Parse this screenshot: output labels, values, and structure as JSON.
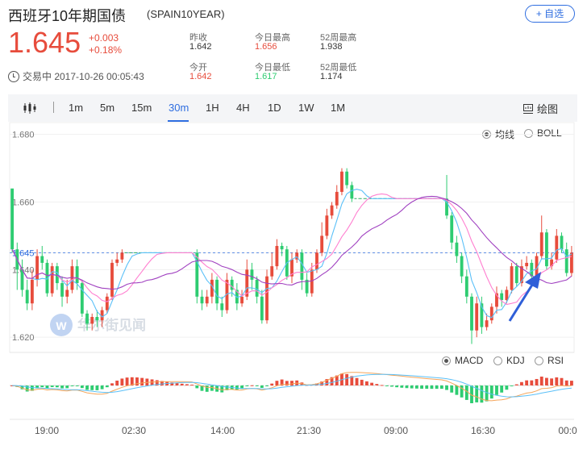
{
  "header": {
    "name": "西班牙10年期国债",
    "code": "(SPAIN10YEAR)",
    "watch_label": "+ 自选"
  },
  "quote": {
    "price": "1.645",
    "change": "+0.003",
    "change_pct": "+0.18%",
    "status": "交易中 2017-10-26 00:05:43",
    "stats": [
      {
        "label": "昨收",
        "value": "1.642",
        "color": "#333333"
      },
      {
        "label": "今日最高",
        "value": "1.656",
        "color": "#e74c3c"
      },
      {
        "label": "52周最高",
        "value": "1.938",
        "color": "#333333"
      },
      {
        "label": "今开",
        "value": "1.642",
        "color": "#e74c3c"
      },
      {
        "label": "今日最低",
        "value": "1.617",
        "color": "#2ecc71"
      },
      {
        "label": "52周最低",
        "value": "1.174",
        "color": "#333333"
      }
    ]
  },
  "toolbar": {
    "tabs": [
      "1m",
      "5m",
      "15m",
      "30m",
      "1H",
      "4H",
      "1D",
      "1W",
      "1M"
    ],
    "active_tab": "30m",
    "draw_label": "绘图"
  },
  "indicators_main": [
    {
      "label": "均线",
      "selected": true
    },
    {
      "label": "BOLL",
      "selected": false
    }
  ],
  "indicators_sub": [
    {
      "label": "MACD",
      "selected": true
    },
    {
      "label": "KDJ",
      "selected": false
    },
    {
      "label": "RSI",
      "selected": false
    }
  ],
  "watermark": "华尔街见闻",
  "colors": {
    "up": "#e74c3c",
    "down": "#2ecc71",
    "accent": "#2f6ee0",
    "ma_short": "#5bc0f8",
    "ma_mid": "#ff7fd0",
    "ma_long": "#a040c0",
    "dif": "#f5a55a",
    "dea": "#5bc0f8"
  },
  "chart_data": {
    "type": "candlestick",
    "y_ticks": [
      "1.680",
      "1.660",
      "1.645",
      "1.640",
      "1.620"
    ],
    "ylim": [
      1.6155,
      1.6835
    ],
    "current_price": 1.645,
    "x_labels": [
      "19:00",
      "02:30",
      "14:00",
      "21:30",
      "09:00",
      "16:30",
      "00:0"
    ],
    "candles": [
      [
        1.664,
        1.646,
        1.66,
        1.645
      ],
      [
        1.646,
        1.64,
        1.648,
        1.634
      ],
      [
        1.64,
        1.634,
        1.643,
        1.632
      ],
      [
        1.634,
        1.63,
        1.637,
        1.628
      ],
      [
        1.63,
        1.637,
        1.64,
        1.628
      ],
      [
        1.637,
        1.644,
        1.646,
        1.635
      ],
      [
        1.644,
        1.642,
        1.647,
        1.64
      ],
      [
        1.642,
        1.633,
        1.643,
        1.632
      ],
      [
        1.633,
        1.641,
        1.642,
        1.632
      ],
      [
        1.641,
        1.636,
        1.642,
        1.634
      ],
      [
        1.636,
        1.632,
        1.638,
        1.629
      ],
      [
        1.632,
        1.634,
        1.637,
        1.63
      ],
      [
        1.634,
        1.641,
        1.643,
        1.633
      ],
      [
        1.641,
        1.636,
        1.643,
        1.634
      ],
      [
        1.636,
        1.627,
        1.637,
        1.626
      ],
      [
        1.627,
        1.624,
        1.628,
        1.622
      ],
      [
        1.624,
        1.626,
        1.627,
        1.622
      ],
      [
        1.626,
        1.625,
        1.628,
        1.623
      ],
      [
        1.625,
        1.628,
        1.629,
        1.623
      ],
      [
        1.628,
        1.632,
        1.633,
        1.627
      ],
      [
        1.632,
        1.642,
        1.643,
        1.631
      ],
      [
        1.642,
        1.643,
        1.645,
        1.641
      ],
      [
        1.643,
        1.645,
        1.646,
        1.642
      ],
      [
        1.645,
        1.645,
        1.646,
        1.644
      ],
      [
        1.645,
        1.645,
        1.646,
        1.644
      ],
      [
        1.645,
        1.645,
        1.646,
        1.644
      ],
      [
        1.645,
        1.645,
        1.646,
        1.644
      ],
      [
        1.645,
        1.645,
        1.646,
        1.644
      ],
      [
        1.645,
        1.645,
        1.646,
        1.644
      ],
      [
        1.645,
        1.645,
        1.646,
        1.644
      ],
      [
        1.645,
        1.645,
        1.646,
        1.644
      ],
      [
        1.645,
        1.645,
        1.646,
        1.644
      ],
      [
        1.645,
        1.645,
        1.646,
        1.644
      ],
      [
        1.645,
        1.645,
        1.646,
        1.644
      ],
      [
        1.645,
        1.645,
        1.646,
        1.644
      ],
      [
        1.645,
        1.645,
        1.646,
        1.644
      ],
      [
        1.645,
        1.645,
        1.646,
        1.644
      ],
      [
        1.645,
        1.632,
        1.646,
        1.63
      ],
      [
        1.632,
        1.63,
        1.634,
        1.628
      ],
      [
        1.63,
        1.632,
        1.634,
        1.629
      ],
      [
        1.632,
        1.637,
        1.639,
        1.63
      ],
      [
        1.637,
        1.63,
        1.638,
        1.628
      ],
      [
        1.63,
        1.628,
        1.632,
        1.626
      ],
      [
        1.628,
        1.637,
        1.639,
        1.627
      ],
      [
        1.637,
        1.634,
        1.638,
        1.632
      ],
      [
        1.634,
        1.63,
        1.636,
        1.628
      ],
      [
        1.63,
        1.632,
        1.634,
        1.629
      ],
      [
        1.632,
        1.64,
        1.643,
        1.631
      ],
      [
        1.64,
        1.637,
        1.642,
        1.634
      ],
      [
        1.637,
        1.632,
        1.638,
        1.63
      ],
      [
        1.632,
        1.625,
        1.634,
        1.624
      ],
      [
        1.625,
        1.638,
        1.64,
        1.624
      ],
      [
        1.638,
        1.641,
        1.645,
        1.637
      ],
      [
        1.641,
        1.647,
        1.649,
        1.64
      ],
      [
        1.647,
        1.646,
        1.648,
        1.644
      ],
      [
        1.646,
        1.638,
        1.647,
        1.637
      ],
      [
        1.638,
        1.643,
        1.645,
        1.636
      ],
      [
        1.643,
        1.645,
        1.646,
        1.642
      ],
      [
        1.645,
        1.637,
        1.646,
        1.634
      ],
      [
        1.637,
        1.633,
        1.639,
        1.632
      ],
      [
        1.633,
        1.64,
        1.642,
        1.632
      ],
      [
        1.64,
        1.645,
        1.646,
        1.639
      ],
      [
        1.645,
        1.65,
        1.654,
        1.644
      ],
      [
        1.65,
        1.656,
        1.658,
        1.649
      ],
      [
        1.656,
        1.659,
        1.66,
        1.655
      ],
      [
        1.659,
        1.663,
        1.665,
        1.658
      ],
      [
        1.663,
        1.669,
        1.67,
        1.662
      ],
      [
        1.669,
        1.665,
        1.67,
        1.664
      ],
      [
        1.665,
        1.661,
        1.666,
        1.66
      ],
      [
        1.661,
        1.661,
        1.662,
        1.66
      ],
      [
        1.661,
        1.661,
        1.662,
        1.66
      ],
      [
        1.661,
        1.661,
        1.662,
        1.66
      ],
      [
        1.661,
        1.661,
        1.662,
        1.66
      ],
      [
        1.661,
        1.661,
        1.662,
        1.66
      ],
      [
        1.661,
        1.661,
        1.662,
        1.66
      ],
      [
        1.661,
        1.661,
        1.662,
        1.66
      ],
      [
        1.661,
        1.661,
        1.662,
        1.66
      ],
      [
        1.661,
        1.661,
        1.662,
        1.66
      ],
      [
        1.661,
        1.661,
        1.662,
        1.66
      ],
      [
        1.661,
        1.661,
        1.662,
        1.66
      ],
      [
        1.661,
        1.661,
        1.662,
        1.66
      ],
      [
        1.661,
        1.661,
        1.662,
        1.66
      ],
      [
        1.661,
        1.661,
        1.662,
        1.66
      ],
      [
        1.661,
        1.661,
        1.662,
        1.66
      ],
      [
        1.661,
        1.661,
        1.662,
        1.66
      ],
      [
        1.661,
        1.661,
        1.662,
        1.66
      ],
      [
        1.661,
        1.661,
        1.662,
        1.66
      ],
      [
        1.661,
        1.656,
        1.668,
        1.655
      ],
      [
        1.656,
        1.648,
        1.657,
        1.646
      ],
      [
        1.648,
        1.644,
        1.65,
        1.642
      ],
      [
        1.644,
        1.638,
        1.645,
        1.636
      ],
      [
        1.638,
        1.632,
        1.64,
        1.63
      ],
      [
        1.632,
        1.622,
        1.633,
        1.618
      ],
      [
        1.622,
        1.63,
        1.632,
        1.62
      ],
      [
        1.63,
        1.623,
        1.632,
        1.621
      ],
      [
        1.623,
        1.625,
        1.627,
        1.622
      ],
      [
        1.625,
        1.629,
        1.63,
        1.624
      ],
      [
        1.629,
        1.633,
        1.635,
        1.627
      ],
      [
        1.633,
        1.631,
        1.634,
        1.629
      ],
      [
        1.631,
        1.634,
        1.635,
        1.63
      ],
      [
        1.634,
        1.641,
        1.642,
        1.633
      ],
      [
        1.641,
        1.636,
        1.642,
        1.635
      ],
      [
        1.636,
        1.641,
        1.643,
        1.635
      ],
      [
        1.641,
        1.642,
        1.644,
        1.64
      ],
      [
        1.642,
        1.638,
        1.643,
        1.637
      ],
      [
        1.638,
        1.644,
        1.645,
        1.637
      ],
      [
        1.644,
        1.651,
        1.656,
        1.643
      ],
      [
        1.651,
        1.641,
        1.652,
        1.64
      ],
      [
        1.641,
        1.643,
        1.645,
        1.64
      ],
      [
        1.643,
        1.65,
        1.652,
        1.642
      ],
      [
        1.65,
        1.646,
        1.651,
        1.645
      ],
      [
        1.646,
        1.639,
        1.648,
        1.638
      ],
      [
        1.639,
        1.645,
        1.647,
        1.638
      ]
    ]
  }
}
